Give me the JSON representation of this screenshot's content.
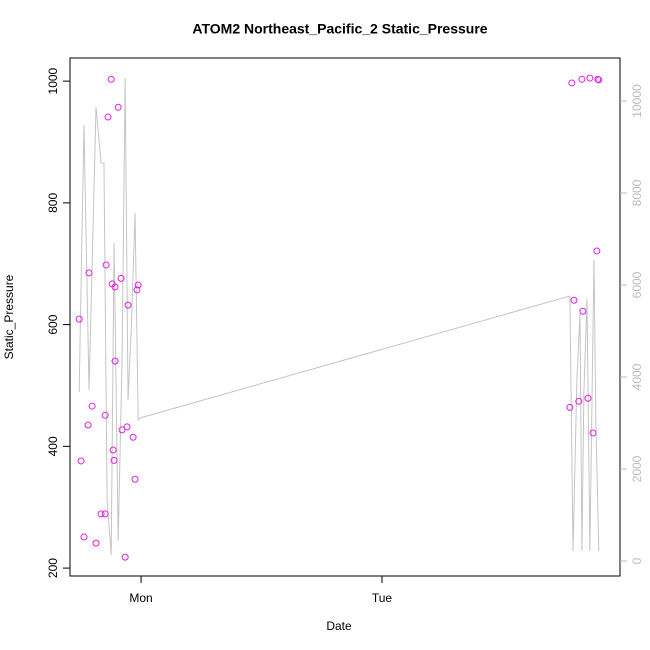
{
  "chart_data": {
    "type": "scatter",
    "title": "ATOM2 Northeast_Pacific_2 Static_Pressure",
    "xlabel": "Date",
    "ylabel": "Static_Pressure",
    "xlim": [
      -0.295,
      1.988
    ],
    "xticks": [
      {
        "value": 0,
        "label": "Mon"
      },
      {
        "value": 1,
        "label": "Tue"
      }
    ],
    "ylim": [
      187,
      1038
    ],
    "yticks": [
      200,
      400,
      600,
      800,
      1000
    ],
    "y2lim": [
      -326,
      10935
    ],
    "y2ticks": [
      0,
      2000,
      4000,
      6000,
      8000,
      10000
    ],
    "series": [
      {
        "type": "scatter",
        "color": "#e21ee2",
        "x": [
          -0.257,
          -0.249,
          -0.237,
          -0.22,
          -0.216,
          -0.203,
          -0.187,
          -0.166,
          -0.149,
          -0.145,
          -0.149,
          -0.137,
          -0.124,
          -0.12,
          -0.116,
          -0.112,
          -0.108,
          -0.108,
          -0.095,
          -0.083,
          -0.079,
          -0.066,
          -0.058,
          -0.054,
          -0.033,
          -0.025,
          -0.017,
          -0.012,
          1.78,
          1.788,
          1.797,
          1.817,
          1.83,
          1.834,
          1.855,
          1.863,
          1.876,
          1.892,
          1.896,
          1.9
        ],
        "values": [
          609,
          376,
          251,
          435,
          685,
          466,
          241,
          289,
          289,
          698,
          451,
          941,
          1003,
          667,
          394,
          377,
          662,
          540,
          957,
          676,
          427,
          218,
          432,
          632,
          415,
          346,
          657,
          665,
          464,
          997,
          640,
          474,
          1003,
          622,
          479,
          1005,
          422,
          721,
          1003,
          1002
        ]
      },
      {
        "type": "line",
        "color": "#c4c4c4",
        "axis": "y2",
        "x": [
          -0.257,
          -0.237,
          -0.216,
          -0.187,
          -0.166,
          -0.154,
          -0.141,
          -0.124,
          -0.112,
          -0.095,
          -0.079,
          -0.066,
          -0.054,
          -0.041,
          -0.025,
          -0.012,
          -0.004,
          1.78,
          1.793,
          1.809,
          1.822,
          1.83,
          1.838,
          1.851,
          1.863,
          1.88,
          1.888,
          1.9
        ],
        "values": [
          3674,
          9478,
          3717,
          9870,
          8652,
          8652,
          1326,
          130,
          6913,
          435,
          4370,
          10500,
          3500,
          5022,
          7565,
          3065,
          3109,
          5761,
          217,
          3935,
          5391,
          217,
          3652,
          5696,
          217,
          6543,
          2957,
          217
        ]
      }
    ]
  }
}
